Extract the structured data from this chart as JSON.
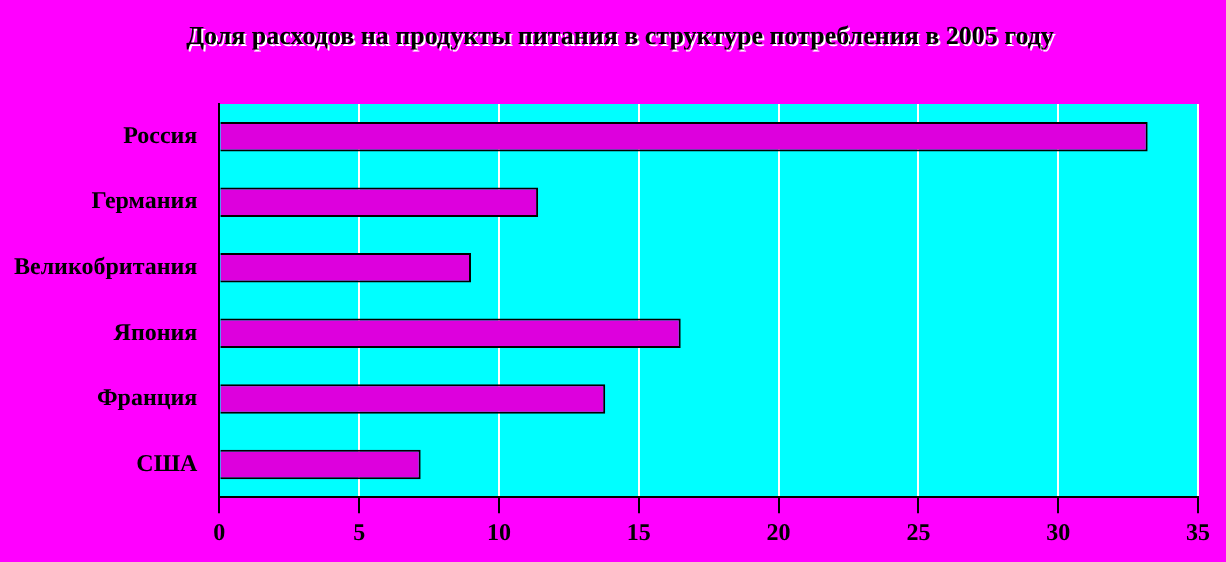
{
  "chart_data": {
    "type": "bar",
    "orientation": "horizontal",
    "title": "Доля расходов на продукты питания в структуре потребления в 2005 году",
    "categories": [
      "Россия",
      "Германия",
      "Великобритания",
      "Япония",
      "Франция",
      "США"
    ],
    "values": [
      33.2,
      11.4,
      9.0,
      16.5,
      13.8,
      7.2
    ],
    "color": "#dd00dd",
    "xlim": [
      0,
      35
    ],
    "xticks": [
      0,
      5,
      10,
      15,
      20,
      25,
      30,
      35
    ],
    "grid": "x",
    "legend": false
  }
}
